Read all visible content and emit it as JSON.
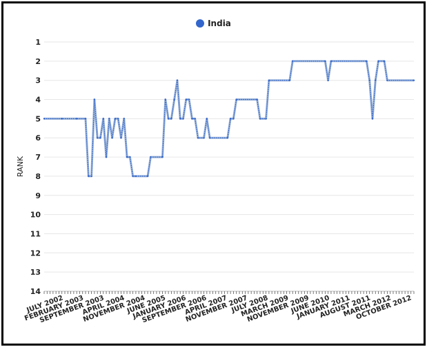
{
  "chart_data": {
    "type": "line",
    "title": "",
    "ylabel": "RANK",
    "xlabel": "",
    "ylim": [
      14,
      1
    ],
    "y_inverted": true,
    "y_ticks": [
      "1",
      "2",
      "3",
      "4",
      "5",
      "6",
      "7",
      "8",
      "9",
      "10",
      "11",
      "12",
      "13",
      "14"
    ],
    "x_tick_labels": [
      "JULY 2002",
      "FEBRUARY 2003",
      "SEPTEMBER 2003",
      "APRIL 2004",
      "NOVEMBER 2004",
      "JUNE 2005",
      "JANUARY 2006",
      "SEPTEMBER 2006",
      "APRIL 2007",
      "NOVEMBER 2007",
      "JULY 2008",
      "MARCH 2009",
      "NOVEMBER 2009",
      "JUNE 2010",
      "JANUARY 2011",
      "AUGUST 2011",
      "MARCH 2012",
      "OCTOBER 2012"
    ],
    "legend": {
      "placement": "top-center"
    },
    "grid": true,
    "series": [
      {
        "name": "India",
        "color": "#94aed6",
        "marker_color": "#3366cc",
        "points": [
          [
            "2002-07",
            5
          ],
          [
            "2003-01",
            5
          ],
          [
            "2003-06",
            5
          ],
          [
            "2003-09",
            5
          ],
          [
            "2003-10",
            8
          ],
          [
            "2003-11",
            8
          ],
          [
            "2003-12",
            4
          ],
          [
            "2004-01",
            6
          ],
          [
            "2004-02",
            6
          ],
          [
            "2004-03",
            5
          ],
          [
            "2004-04",
            7
          ],
          [
            "2004-05",
            5
          ],
          [
            "2004-06",
            6
          ],
          [
            "2004-07",
            5
          ],
          [
            "2004-08",
            5
          ],
          [
            "2004-09",
            6
          ],
          [
            "2004-10",
            5
          ],
          [
            "2004-11",
            7
          ],
          [
            "2004-12",
            7
          ],
          [
            "2005-01",
            8
          ],
          [
            "2005-02",
            8
          ],
          [
            "2005-06",
            8
          ],
          [
            "2005-07",
            7
          ],
          [
            "2005-11",
            7
          ],
          [
            "2005-12",
            4
          ],
          [
            "2006-01",
            5
          ],
          [
            "2006-02",
            5
          ],
          [
            "2006-03",
            4
          ],
          [
            "2006-04",
            3
          ],
          [
            "2006-05",
            5
          ],
          [
            "2006-06",
            5
          ],
          [
            "2006-07",
            4
          ],
          [
            "2006-08",
            4
          ],
          [
            "2006-09",
            5
          ],
          [
            "2006-10",
            5
          ],
          [
            "2006-11",
            6
          ],
          [
            "2007-01",
            6
          ],
          [
            "2007-02",
            5
          ],
          [
            "2007-03",
            6
          ],
          [
            "2007-09",
            6
          ],
          [
            "2007-10",
            5
          ],
          [
            "2007-11",
            5
          ],
          [
            "2007-12",
            4
          ],
          [
            "2008-07",
            4
          ],
          [
            "2008-08",
            5
          ],
          [
            "2008-10",
            5
          ],
          [
            "2008-11",
            3
          ],
          [
            "2009-06",
            3
          ],
          [
            "2009-07",
            2
          ],
          [
            "2010-06",
            2
          ],
          [
            "2010-07",
            3
          ],
          [
            "2010-08",
            2
          ],
          [
            "2011-08",
            2
          ],
          [
            "2011-09",
            3
          ],
          [
            "2011-10",
            5
          ],
          [
            "2011-11",
            3
          ],
          [
            "2011-12",
            2
          ],
          [
            "2012-02",
            2
          ],
          [
            "2012-03",
            3
          ],
          [
            "2012-12",
            3
          ]
        ]
      }
    ]
  }
}
